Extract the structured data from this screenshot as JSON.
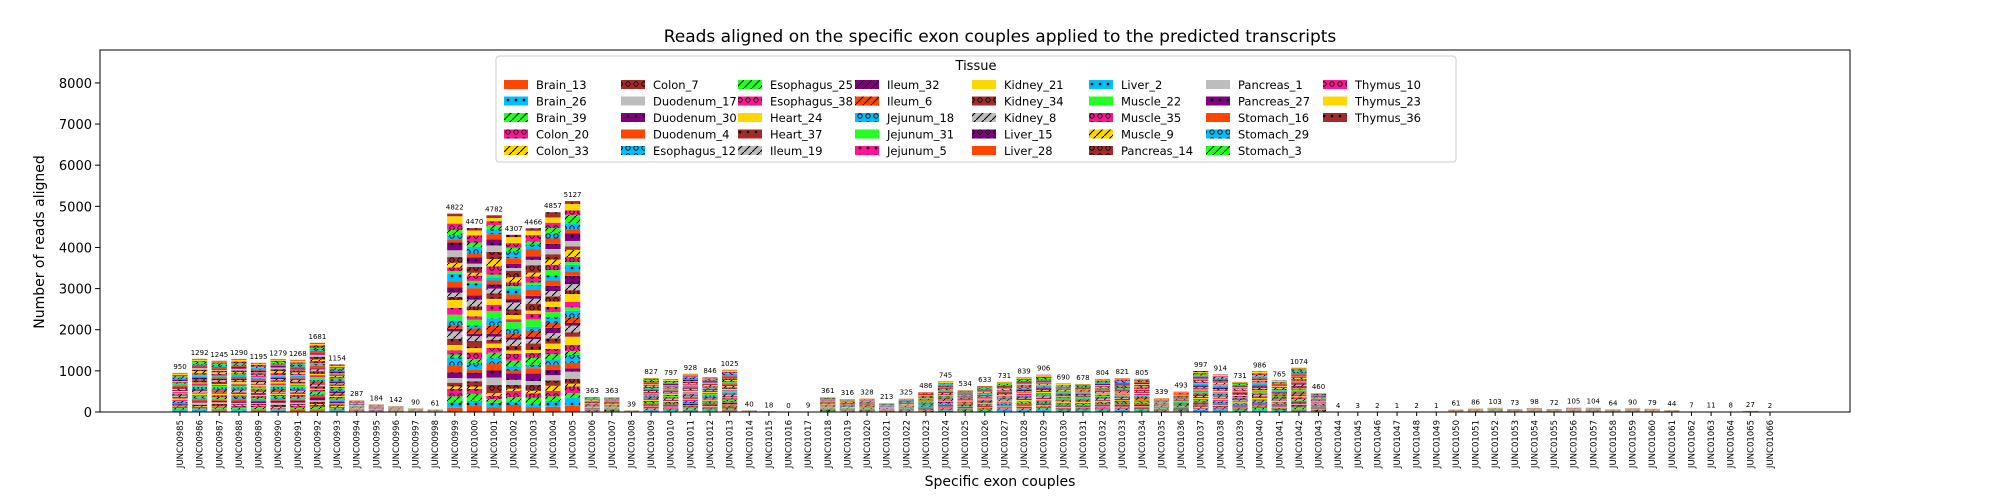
{
  "chart_data": {
    "type": "bar",
    "stacked": true,
    "title": "Reads aligned on the specific exon couples applied to the predicted transcripts",
    "xlabel": "Specific exon couples",
    "ylabel": "Number of reads aligned",
    "ylim": [
      0,
      8800
    ],
    "yticks": [
      0,
      1000,
      2000,
      3000,
      4000,
      5000,
      6000,
      7000,
      8000
    ],
    "legend": {
      "title": "Tissue",
      "placement": "top-center",
      "columns": 8
    },
    "categories": [
      "JUNC00985",
      "JUNC00986",
      "JUNC00987",
      "JUNC00988",
      "JUNC00989",
      "JUNC00990",
      "JUNC00991",
      "JUNC00992",
      "JUNC00993",
      "JUNC00994",
      "JUNC00995",
      "JUNC00996",
      "JUNC00997",
      "JUNC00998",
      "JUNC00999",
      "JUNC01000",
      "JUNC01001",
      "JUNC01002",
      "JUNC01003",
      "JUNC01004",
      "JUNC01005",
      "JUNC01006",
      "JUNC01007",
      "JUNC01008",
      "JUNC01009",
      "JUNC01010",
      "JUNC01011",
      "JUNC01012",
      "JUNC01013",
      "JUNC01014",
      "JUNC01015",
      "JUNC01016",
      "JUNC01017",
      "JUNC01018",
      "JUNC01019",
      "JUNC01020",
      "JUNC01021",
      "JUNC01022",
      "JUNC01023",
      "JUNC01024",
      "JUNC01025",
      "JUNC01026",
      "JUNC01027",
      "JUNC01028",
      "JUNC01029",
      "JUNC01030",
      "JUNC01031",
      "JUNC01032",
      "JUNC01033",
      "JUNC01034",
      "JUNC01035",
      "JUNC01036",
      "JUNC01037",
      "JUNC01038",
      "JUNC01039",
      "JUNC01040",
      "JUNC01041",
      "JUNC01042",
      "JUNC01043",
      "JUNC01044",
      "JUNC01045",
      "JUNC01046",
      "JUNC01047",
      "JUNC01048",
      "JUNC01049",
      "JUNC01050",
      "JUNC01051",
      "JUNC01052",
      "JUNC01053",
      "JUNC01054",
      "JUNC01055",
      "JUNC01056",
      "JUNC01057",
      "JUNC01058",
      "JUNC01059",
      "JUNC01060",
      "JUNC01061",
      "JUNC01062",
      "JUNC01063",
      "JUNC01064",
      "JUNC01065",
      "JUNC01066"
    ],
    "totals": [
      950,
      1292,
      1245,
      1290,
      1195,
      1279,
      1268,
      1681,
      1154,
      287,
      184,
      142,
      90,
      61,
      4822,
      4470,
      4782,
      4307,
      4466,
      4857,
      5127,
      363,
      363,
      39,
      827,
      797,
      928,
      846,
      1025,
      40,
      18,
      0,
      9,
      361,
      316,
      328,
      213,
      325,
      486,
      745,
      534,
      633,
      731,
      839,
      906,
      690,
      678,
      804,
      821,
      805,
      339,
      493,
      997,
      914,
      731,
      986,
      765,
      1074,
      460,
      4,
      3,
      2,
      1,
      2,
      1,
      61,
      86,
      103,
      73,
      98,
      72,
      105,
      104,
      64,
      90,
      79,
      44,
      7,
      11,
      8,
      27,
      2
    ],
    "series": [
      {
        "name": "Brain_13",
        "color": "#ff4500",
        "pattern": "none"
      },
      {
        "name": "Brain_26",
        "color": "#00bfff",
        "pattern": "dot"
      },
      {
        "name": "Brain_39",
        "color": "#22ff22",
        "pattern": "slash"
      },
      {
        "name": "Colon_20",
        "color": "#ff1493",
        "pattern": "ring"
      },
      {
        "name": "Colon_33",
        "color": "#ffd700",
        "pattern": "slash"
      },
      {
        "name": "Colon_7",
        "color": "#a52a2a",
        "pattern": "ring"
      },
      {
        "name": "Duodenum_17",
        "color": "#bdbdbd",
        "pattern": "none"
      },
      {
        "name": "Duodenum_30",
        "color": "#800080",
        "pattern": "dot"
      },
      {
        "name": "Duodenum_4",
        "color": "#ff4500",
        "pattern": "none"
      },
      {
        "name": "Esophagus_12",
        "color": "#00bfff",
        "pattern": "ring"
      },
      {
        "name": "Esophagus_25",
        "color": "#22ff22",
        "pattern": "slash"
      },
      {
        "name": "Esophagus_38",
        "color": "#ff1493",
        "pattern": "ring"
      },
      {
        "name": "Heart_24",
        "color": "#ffd700",
        "pattern": "none"
      },
      {
        "name": "Heart_37",
        "color": "#a52a2a",
        "pattern": "dot"
      },
      {
        "name": "Ileum_19",
        "color": "#bdbdbd",
        "pattern": "slash"
      },
      {
        "name": "Ileum_32",
        "color": "#800080",
        "pattern": "slash"
      },
      {
        "name": "Ileum_6",
        "color": "#ff4500",
        "pattern": "slash"
      },
      {
        "name": "Jejunum_18",
        "color": "#00bfff",
        "pattern": "ring"
      },
      {
        "name": "Jejunum_31",
        "color": "#22ff22",
        "pattern": "none"
      },
      {
        "name": "Jejunum_5",
        "color": "#ff1493",
        "pattern": "dot"
      },
      {
        "name": "Kidney_21",
        "color": "#ffd700",
        "pattern": "none"
      },
      {
        "name": "Kidney_34",
        "color": "#a52a2a",
        "pattern": "ring"
      },
      {
        "name": "Kidney_8",
        "color": "#bdbdbd",
        "pattern": "slash"
      },
      {
        "name": "Liver_15",
        "color": "#800080",
        "pattern": "ring"
      },
      {
        "name": "Liver_28",
        "color": "#ff4500",
        "pattern": "none"
      },
      {
        "name": "Liver_2",
        "color": "#00bfff",
        "pattern": "dot"
      },
      {
        "name": "Muscle_22",
        "color": "#22ff22",
        "pattern": "none"
      },
      {
        "name": "Muscle_35",
        "color": "#ff1493",
        "pattern": "ring"
      },
      {
        "name": "Muscle_9",
        "color": "#ffd700",
        "pattern": "slash"
      },
      {
        "name": "Pancreas_14",
        "color": "#a52a2a",
        "pattern": "ring"
      },
      {
        "name": "Pancreas_1",
        "color": "#bdbdbd",
        "pattern": "none"
      },
      {
        "name": "Pancreas_27",
        "color": "#800080",
        "pattern": "dot"
      },
      {
        "name": "Stomach_16",
        "color": "#ff4500",
        "pattern": "none"
      },
      {
        "name": "Stomach_29",
        "color": "#00bfff",
        "pattern": "ring"
      },
      {
        "name": "Stomach_3",
        "color": "#22ff22",
        "pattern": "slash"
      },
      {
        "name": "Thymus_10",
        "color": "#ff1493",
        "pattern": "ring"
      },
      {
        "name": "Thymus_23",
        "color": "#ffd700",
        "pattern": "none"
      },
      {
        "name": "Thymus_36",
        "color": "#a52a2a",
        "pattern": "dot"
      }
    ]
  }
}
